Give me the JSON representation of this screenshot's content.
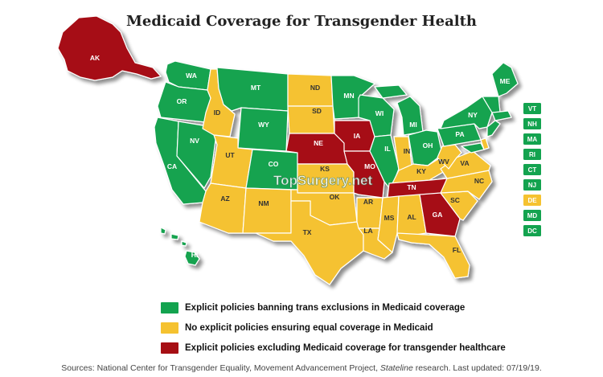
{
  "title": "Medicaid Coverage for Transgender Health",
  "colors": {
    "green": "#13a34f",
    "yellow": "#f5c230",
    "red": "#a60f14"
  },
  "states": [
    {
      "code": "AK",
      "status": "red"
    },
    {
      "code": "HI",
      "status": "green"
    },
    {
      "code": "WA",
      "status": "green"
    },
    {
      "code": "OR",
      "status": "green"
    },
    {
      "code": "CA",
      "status": "green"
    },
    {
      "code": "NV",
      "status": "green"
    },
    {
      "code": "ID",
      "status": "yellow"
    },
    {
      "code": "MT",
      "status": "green"
    },
    {
      "code": "WY",
      "status": "green"
    },
    {
      "code": "UT",
      "status": "yellow"
    },
    {
      "code": "AZ",
      "status": "yellow"
    },
    {
      "code": "CO",
      "status": "green"
    },
    {
      "code": "NM",
      "status": "yellow"
    },
    {
      "code": "ND",
      "status": "yellow"
    },
    {
      "code": "SD",
      "status": "yellow"
    },
    {
      "code": "NE",
      "status": "red"
    },
    {
      "code": "KS",
      "status": "yellow"
    },
    {
      "code": "OK",
      "status": "yellow"
    },
    {
      "code": "TX",
      "status": "yellow"
    },
    {
      "code": "MN",
      "status": "green"
    },
    {
      "code": "IA",
      "status": "red"
    },
    {
      "code": "MO",
      "status": "red"
    },
    {
      "code": "AR",
      "status": "yellow"
    },
    {
      "code": "LA",
      "status": "yellow"
    },
    {
      "code": "WI",
      "status": "green"
    },
    {
      "code": "IL",
      "status": "green"
    },
    {
      "code": "MI",
      "status": "green"
    },
    {
      "code": "IN",
      "status": "yellow"
    },
    {
      "code": "OH",
      "status": "green"
    },
    {
      "code": "KY",
      "status": "yellow"
    },
    {
      "code": "TN",
      "status": "red"
    },
    {
      "code": "MS",
      "status": "yellow"
    },
    {
      "code": "AL",
      "status": "yellow"
    },
    {
      "code": "GA",
      "status": "red"
    },
    {
      "code": "FL",
      "status": "yellow"
    },
    {
      "code": "SC",
      "status": "yellow"
    },
    {
      "code": "NC",
      "status": "yellow"
    },
    {
      "code": "VA",
      "status": "yellow"
    },
    {
      "code": "WV",
      "status": "yellow"
    },
    {
      "code": "PA",
      "status": "green"
    },
    {
      "code": "NY",
      "status": "green"
    },
    {
      "code": "ME",
      "status": "green"
    }
  ],
  "small_states": [
    {
      "code": "VT",
      "status": "green"
    },
    {
      "code": "NH",
      "status": "green"
    },
    {
      "code": "MA",
      "status": "green"
    },
    {
      "code": "RI",
      "status": "green"
    },
    {
      "code": "CT",
      "status": "green"
    },
    {
      "code": "NJ",
      "status": "green"
    },
    {
      "code": "DE",
      "status": "yellow"
    },
    {
      "code": "MD",
      "status": "green"
    },
    {
      "code": "DC",
      "status": "green"
    }
  ],
  "watermark": "TopSurgery.net",
  "legend": [
    {
      "status": "green",
      "label": "Explicit policies banning trans exclusions in Medicaid coverage"
    },
    {
      "status": "yellow",
      "label": "No explicit policies ensuring equal coverage in Medicaid"
    },
    {
      "status": "red",
      "label": "Explicit policies excluding Medicaid coverage for transgender healthcare"
    }
  ],
  "source": {
    "prefix": "Sources: National Center for Transgender Equality, Movement Advancement Project, ",
    "italic": "Stateline",
    "suffix": " research. Last updated: 07/19/19."
  }
}
